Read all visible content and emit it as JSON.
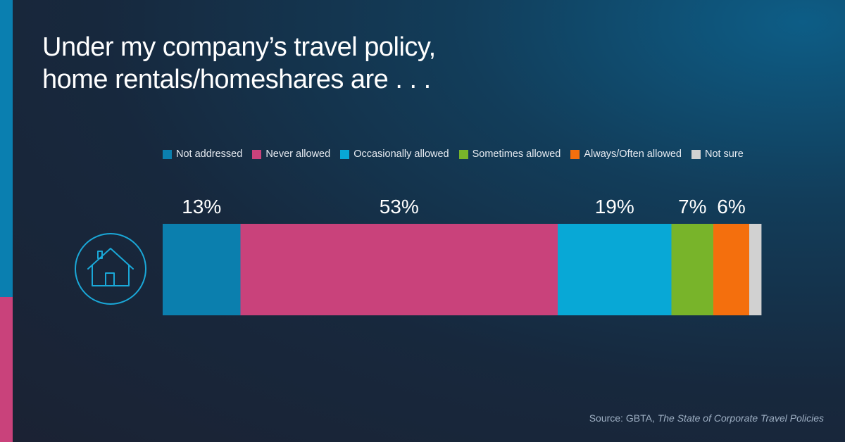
{
  "title": {
    "line1": "Under my company’s travel policy,",
    "line2": "home rentals/homeshares are . . ."
  },
  "source": {
    "prefix": "Source: GBTA, ",
    "publication": "The State of Corporate Travel Policies"
  },
  "colors": {
    "accent_top": "#0a7fb0",
    "accent_bottom": "#c9427b",
    "icon_stroke": "#1aa8d8"
  },
  "icon": "house-icon",
  "chart_data": {
    "type": "bar",
    "orientation": "horizontal-stacked",
    "title": "",
    "xlabel": "",
    "ylabel": "",
    "xlim": [
      0,
      100
    ],
    "legend_position": "top",
    "grid": false,
    "series": [
      {
        "name": "Not addressed",
        "value": 13,
        "label": "13%",
        "color": "#0b7fae"
      },
      {
        "name": "Never allowed",
        "value": 53,
        "label": "53%",
        "color": "#c9427b"
      },
      {
        "name": "Occasionally allowed",
        "value": 19,
        "label": "19%",
        "color": "#08a8d6"
      },
      {
        "name": "Sometimes allowed",
        "value": 7,
        "label": "7%",
        "color": "#78b42a"
      },
      {
        "name": "Always/Often allowed",
        "value": 6,
        "label": "6%",
        "color": "#f46f0d"
      },
      {
        "name": "Not sure",
        "value": 2,
        "label": "",
        "color": "#d1d1d1"
      }
    ]
  }
}
